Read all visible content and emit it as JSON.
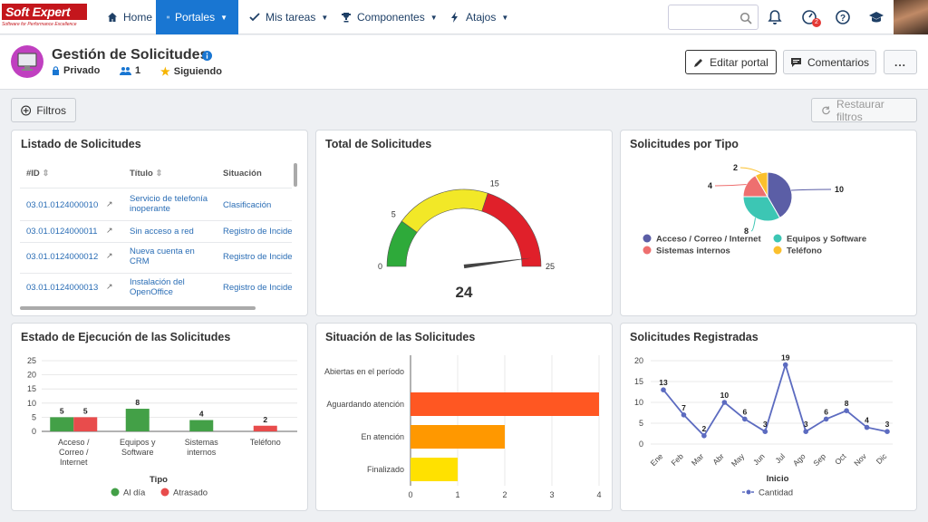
{
  "logo": {
    "text": "Soft Expert",
    "tagline": "Software for Performance Excellence"
  },
  "nav": [
    {
      "label": "Home",
      "icon": "home-icon"
    },
    {
      "label": "Portales",
      "icon": "portal-icon",
      "active": true
    },
    {
      "label": "Mis tareas",
      "icon": "check-icon"
    },
    {
      "label": "Componentes",
      "icon": "trophy-icon"
    },
    {
      "label": "Atajos",
      "icon": "bolt-icon"
    }
  ],
  "topbar": {
    "search_placeholder": "",
    "notif_badge": "2"
  },
  "portal": {
    "title": "Gestión de Solicitudes",
    "privacy": "Privado",
    "members": "1",
    "following": "Siguiendo"
  },
  "actions": {
    "edit": "Editar portal",
    "comments": "Comentarios",
    "more": "..."
  },
  "filters": {
    "label": "Filtros",
    "restore": "Restaurar filtros"
  },
  "panels": {
    "list": "Listado de Solicitudes",
    "total": "Total de Solicitudes",
    "bytype": "Solicitudes por Tipo",
    "exec": "Estado de Ejecución de las Solicitudes",
    "situation": "Situación de las Solicitudes",
    "registered": "Solicitudes Registradas"
  },
  "table": {
    "headers": [
      "#ID",
      "Título",
      "Situación"
    ],
    "rows": [
      {
        "id": "03.01.0124000010",
        "title": "Servicio de telefonía inoperante",
        "status": "Clasificación"
      },
      {
        "id": "03.01.0124000011",
        "title": "Sin acceso a red",
        "status": "Registro de Incidencias"
      },
      {
        "id": "03.01.0124000012",
        "title": "Nueva cuenta en CRM",
        "status": "Registro de Incidencias"
      },
      {
        "id": "03.01.0124000013",
        "title": "Instalación del OpenOffice",
        "status": "Registro de Incidencias"
      }
    ]
  },
  "chart_data": [
    {
      "type": "gauge",
      "title": "Total de Solicitudes",
      "value": 24,
      "min": 0,
      "max": 25,
      "ticks": [
        0,
        5,
        15,
        25
      ],
      "bands": [
        {
          "from": 0,
          "to": 5,
          "color": "#2eaa3a"
        },
        {
          "from": 5,
          "to": 15,
          "color": "#f2e827"
        },
        {
          "from": 15,
          "to": 25,
          "color": "#e0202a"
        }
      ]
    },
    {
      "type": "pie",
      "title": "Solicitudes por Tipo",
      "categories": [
        "Acceso / Correo / Internet",
        "Equipos y Software",
        "Sistemas internos",
        "Teléfono"
      ],
      "values": [
        10,
        8,
        4,
        2
      ],
      "colors": [
        "#5b5ea6",
        "#3cc6b4",
        "#ee6f6f",
        "#fbc02d"
      ],
      "legend": "bottom"
    },
    {
      "type": "bar",
      "title": "Estado de Ejecución de las Solicitudes",
      "xlabel": "Tipo",
      "ylabel": "",
      "categories": [
        "Acceso / Correo / Internet",
        "Equipos y Software",
        "Sistemas internos",
        "Teléfono"
      ],
      "series": [
        {
          "name": "Al día",
          "color": "#43a047",
          "values": [
            5,
            8,
            4,
            null
          ]
        },
        {
          "name": "Atrasado",
          "color": "#e84c4c",
          "values": [
            5,
            null,
            null,
            2
          ]
        }
      ],
      "ylim": [
        0,
        25
      ],
      "yticks": [
        0,
        5,
        10,
        15,
        20,
        25
      ],
      "legend": "bottom"
    },
    {
      "type": "bar",
      "orientation": "horizontal",
      "title": "Situación de las Solicitudes",
      "categories": [
        "Abiertas en el período",
        "Aguardando atención",
        "En atención",
        "Finalizado"
      ],
      "values": [
        0,
        4,
        2,
        1
      ],
      "colors": [
        "#ff5722",
        "#ff5722",
        "#ff9800",
        "#ffe100"
      ],
      "xlim": [
        0,
        4
      ],
      "xticks": [
        0,
        1,
        2,
        3,
        4
      ]
    },
    {
      "type": "line",
      "title": "Solicitudes Registradas",
      "xlabel": "Inicio",
      "categories": [
        "Ene",
        "Feb",
        "Mar",
        "Abr",
        "May",
        "Jun",
        "Jul",
        "Ago",
        "Sep",
        "Oct",
        "Nov",
        "Dic"
      ],
      "series": [
        {
          "name": "Cantidad",
          "color": "#5c6bc0",
          "values": [
            13,
            7,
            2,
            10,
            6,
            3,
            19,
            3,
            6,
            8,
            4,
            3
          ]
        }
      ],
      "ylim": [
        0,
        20
      ],
      "yticks": [
        0,
        5,
        10,
        15,
        20
      ],
      "legend": "bottom"
    }
  ]
}
